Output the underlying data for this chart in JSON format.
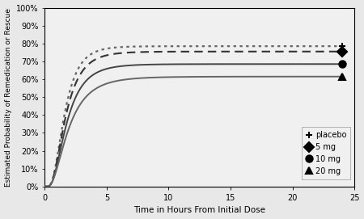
{
  "title": "",
  "xlabel": "Time in Hours From Initial Dose",
  "ylabel": "Estimated Probability of Remedication or Rescue",
  "xlim": [
    0,
    24
  ],
  "ylim": [
    0,
    1.0
  ],
  "yticks": [
    0.0,
    0.1,
    0.2,
    0.3,
    0.4,
    0.5,
    0.6,
    0.7,
    0.8,
    0.9,
    1.0
  ],
  "ytick_labels": [
    "0%",
    "10%",
    "20%",
    "30%",
    "40%",
    "50%",
    "60%",
    "70%",
    "80%",
    "90%",
    "100%"
  ],
  "xticks": [
    0,
    5,
    10,
    15,
    20,
    25
  ],
  "curves": [
    {
      "name": "placebo",
      "color": "#666666",
      "linestyle": "dotted",
      "linewidth": 1.6,
      "endpoint": 0.785,
      "mu": 0.45,
      "sigma": 0.55,
      "marker": "+"
    },
    {
      "name": "5mg",
      "color": "#333333",
      "linestyle": "dashed",
      "linewidth": 1.5,
      "endpoint": 0.755,
      "mu": 0.5,
      "sigma": 0.58,
      "marker": "D"
    },
    {
      "name": "10mg",
      "color": "#444444",
      "linestyle": "solid",
      "linewidth": 1.4,
      "endpoint": 0.685,
      "mu": 0.55,
      "sigma": 0.6,
      "marker": "o"
    },
    {
      "name": "20mg",
      "color": "#666666",
      "linestyle": "solid",
      "linewidth": 1.4,
      "endpoint": 0.615,
      "mu": 0.62,
      "sigma": 0.65,
      "marker": "^"
    }
  ],
  "legend_labels": [
    "placebo",
    "5 mg",
    "10 mg",
    "20 mg"
  ],
  "legend_markers": [
    "+",
    "D",
    "o",
    "^"
  ],
  "background_color": "#f0f0f0"
}
